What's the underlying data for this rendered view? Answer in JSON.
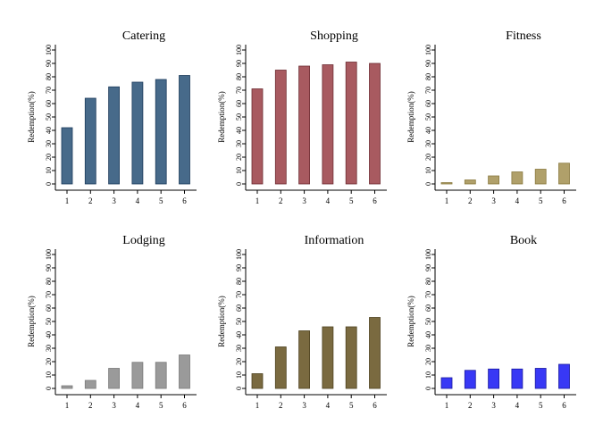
{
  "chart_data": [
    {
      "type": "bar",
      "title": "Catering",
      "ylabel": "Redemption(%)",
      "xlabel": "",
      "categories": [
        "1",
        "2",
        "3",
        "4",
        "5",
        "6"
      ],
      "values": [
        42,
        64,
        72.5,
        76,
        78,
        81
      ],
      "ylim": [
        0,
        100
      ],
      "yticks": [
        0,
        10,
        20,
        30,
        40,
        50,
        60,
        70,
        80,
        90,
        100
      ],
      "color": "#476a8a",
      "stroke": "#1f3c5c"
    },
    {
      "type": "bar",
      "title": "Shopping",
      "ylabel": "Redemption(%)",
      "xlabel": "",
      "categories": [
        "1",
        "2",
        "3",
        "4",
        "5",
        "6"
      ],
      "values": [
        71,
        85,
        88,
        89,
        91,
        90
      ],
      "ylim": [
        0,
        100
      ],
      "yticks": [
        0,
        10,
        20,
        30,
        40,
        50,
        60,
        70,
        80,
        90,
        100
      ],
      "color": "#a85a60",
      "stroke": "#6e2e34"
    },
    {
      "type": "bar",
      "title": "Fitness",
      "ylabel": "Redemption(%)",
      "xlabel": "",
      "categories": [
        "1",
        "2",
        "3",
        "4",
        "5",
        "6"
      ],
      "values": [
        1,
        3,
        6,
        9,
        11,
        15.5
      ],
      "ylim": [
        0,
        100
      ],
      "yticks": [
        0,
        10,
        20,
        30,
        40,
        50,
        60,
        70,
        80,
        90,
        100
      ],
      "color": "#b0a06a",
      "stroke": "#8a7a40"
    },
    {
      "type": "bar",
      "title": "Lodging",
      "ylabel": "Redemption(%)",
      "xlabel": "",
      "categories": [
        "1",
        "2",
        "3",
        "4",
        "5",
        "6"
      ],
      "values": [
        2,
        6,
        15,
        19.5,
        19.5,
        25
      ],
      "ylim": [
        0,
        100
      ],
      "yticks": [
        0,
        10,
        20,
        30,
        40,
        50,
        60,
        70,
        80,
        90,
        100
      ],
      "color": "#9a9a9a",
      "stroke": "#7a7a7a"
    },
    {
      "type": "bar",
      "title": "Information",
      "ylabel": "Redemption(%)",
      "xlabel": "",
      "categories": [
        "1",
        "2",
        "3",
        "4",
        "5",
        "6"
      ],
      "values": [
        11,
        31,
        43,
        46,
        46,
        53
      ],
      "ylim": [
        0,
        100
      ],
      "yticks": [
        0,
        10,
        20,
        30,
        40,
        50,
        60,
        70,
        80,
        90,
        100
      ],
      "color": "#7a6a40",
      "stroke": "#4e4220"
    },
    {
      "type": "bar",
      "title": "Book",
      "ylabel": "Redemption(%)",
      "xlabel": "",
      "categories": [
        "1",
        "2",
        "3",
        "4",
        "5",
        "6"
      ],
      "values": [
        8,
        13.5,
        14.5,
        14.5,
        15,
        18
      ],
      "ylim": [
        0,
        100
      ],
      "yticks": [
        0,
        10,
        20,
        30,
        40,
        50,
        60,
        70,
        80,
        90,
        100
      ],
      "color": "#3838f5",
      "stroke": "#1a1aa0"
    }
  ]
}
